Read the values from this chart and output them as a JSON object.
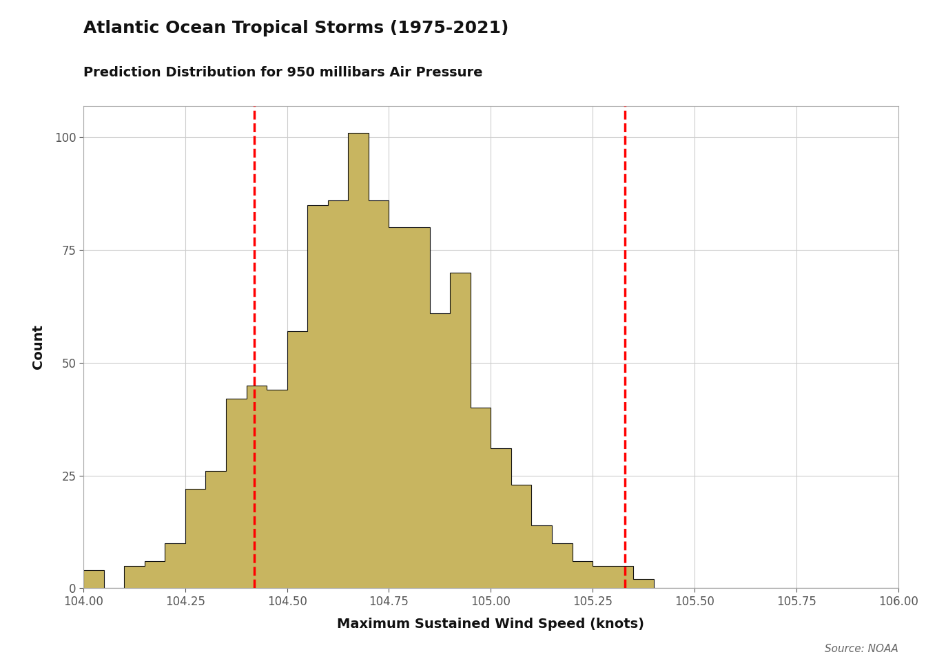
{
  "title": "Atlantic Ocean Tropical Storms (1975-2021)",
  "subtitle": "Prediction Distribution for 950 millibars Air Pressure",
  "xlabel": "Maximum Sustained Wind Speed (knots)",
  "ylabel": "Count",
  "source_text": "Source: NOAA",
  "bar_color": "#C8B560",
  "bar_edgecolor": "#111111",
  "background_color": "#ffffff",
  "grid_color": "#cccccc",
  "xmin": 104.0,
  "xmax": 106.0,
  "ymin": 0,
  "ymax": 107,
  "xticks": [
    104.0,
    104.25,
    104.5,
    104.75,
    105.0,
    105.25,
    105.5,
    105.75,
    106.0
  ],
  "yticks": [
    0,
    25,
    50,
    75,
    100
  ],
  "vline1": 104.42,
  "vline2": 105.33,
  "bin_width": 0.05,
  "title_fontsize": 18,
  "subtitle_fontsize": 14,
  "axis_label_fontsize": 14,
  "tick_fontsize": 12,
  "source_fontsize": 11,
  "bin_starts": [
    104.0,
    104.05,
    104.1,
    104.15,
    104.2,
    104.25,
    104.3,
    104.35,
    104.4,
    104.45,
    104.5,
    104.55,
    104.6,
    104.65,
    104.7,
    104.75,
    104.8,
    104.85,
    104.9,
    104.95,
    105.0,
    105.05,
    105.1,
    105.15,
    105.2,
    105.25,
    105.3,
    105.35,
    105.4,
    105.45,
    105.5,
    105.55,
    105.6,
    105.65,
    105.7,
    105.75,
    105.8,
    105.85,
    105.9,
    105.95
  ],
  "counts": [
    4,
    0,
    5,
    6,
    10,
    22,
    26,
    42,
    45,
    44,
    57,
    85,
    86,
    101,
    86,
    80,
    80,
    61,
    70,
    40,
    31,
    23,
    14,
    10,
    6,
    5,
    5,
    2,
    0,
    0,
    0,
    0,
    0,
    0,
    0,
    0,
    0,
    0,
    0,
    0
  ]
}
